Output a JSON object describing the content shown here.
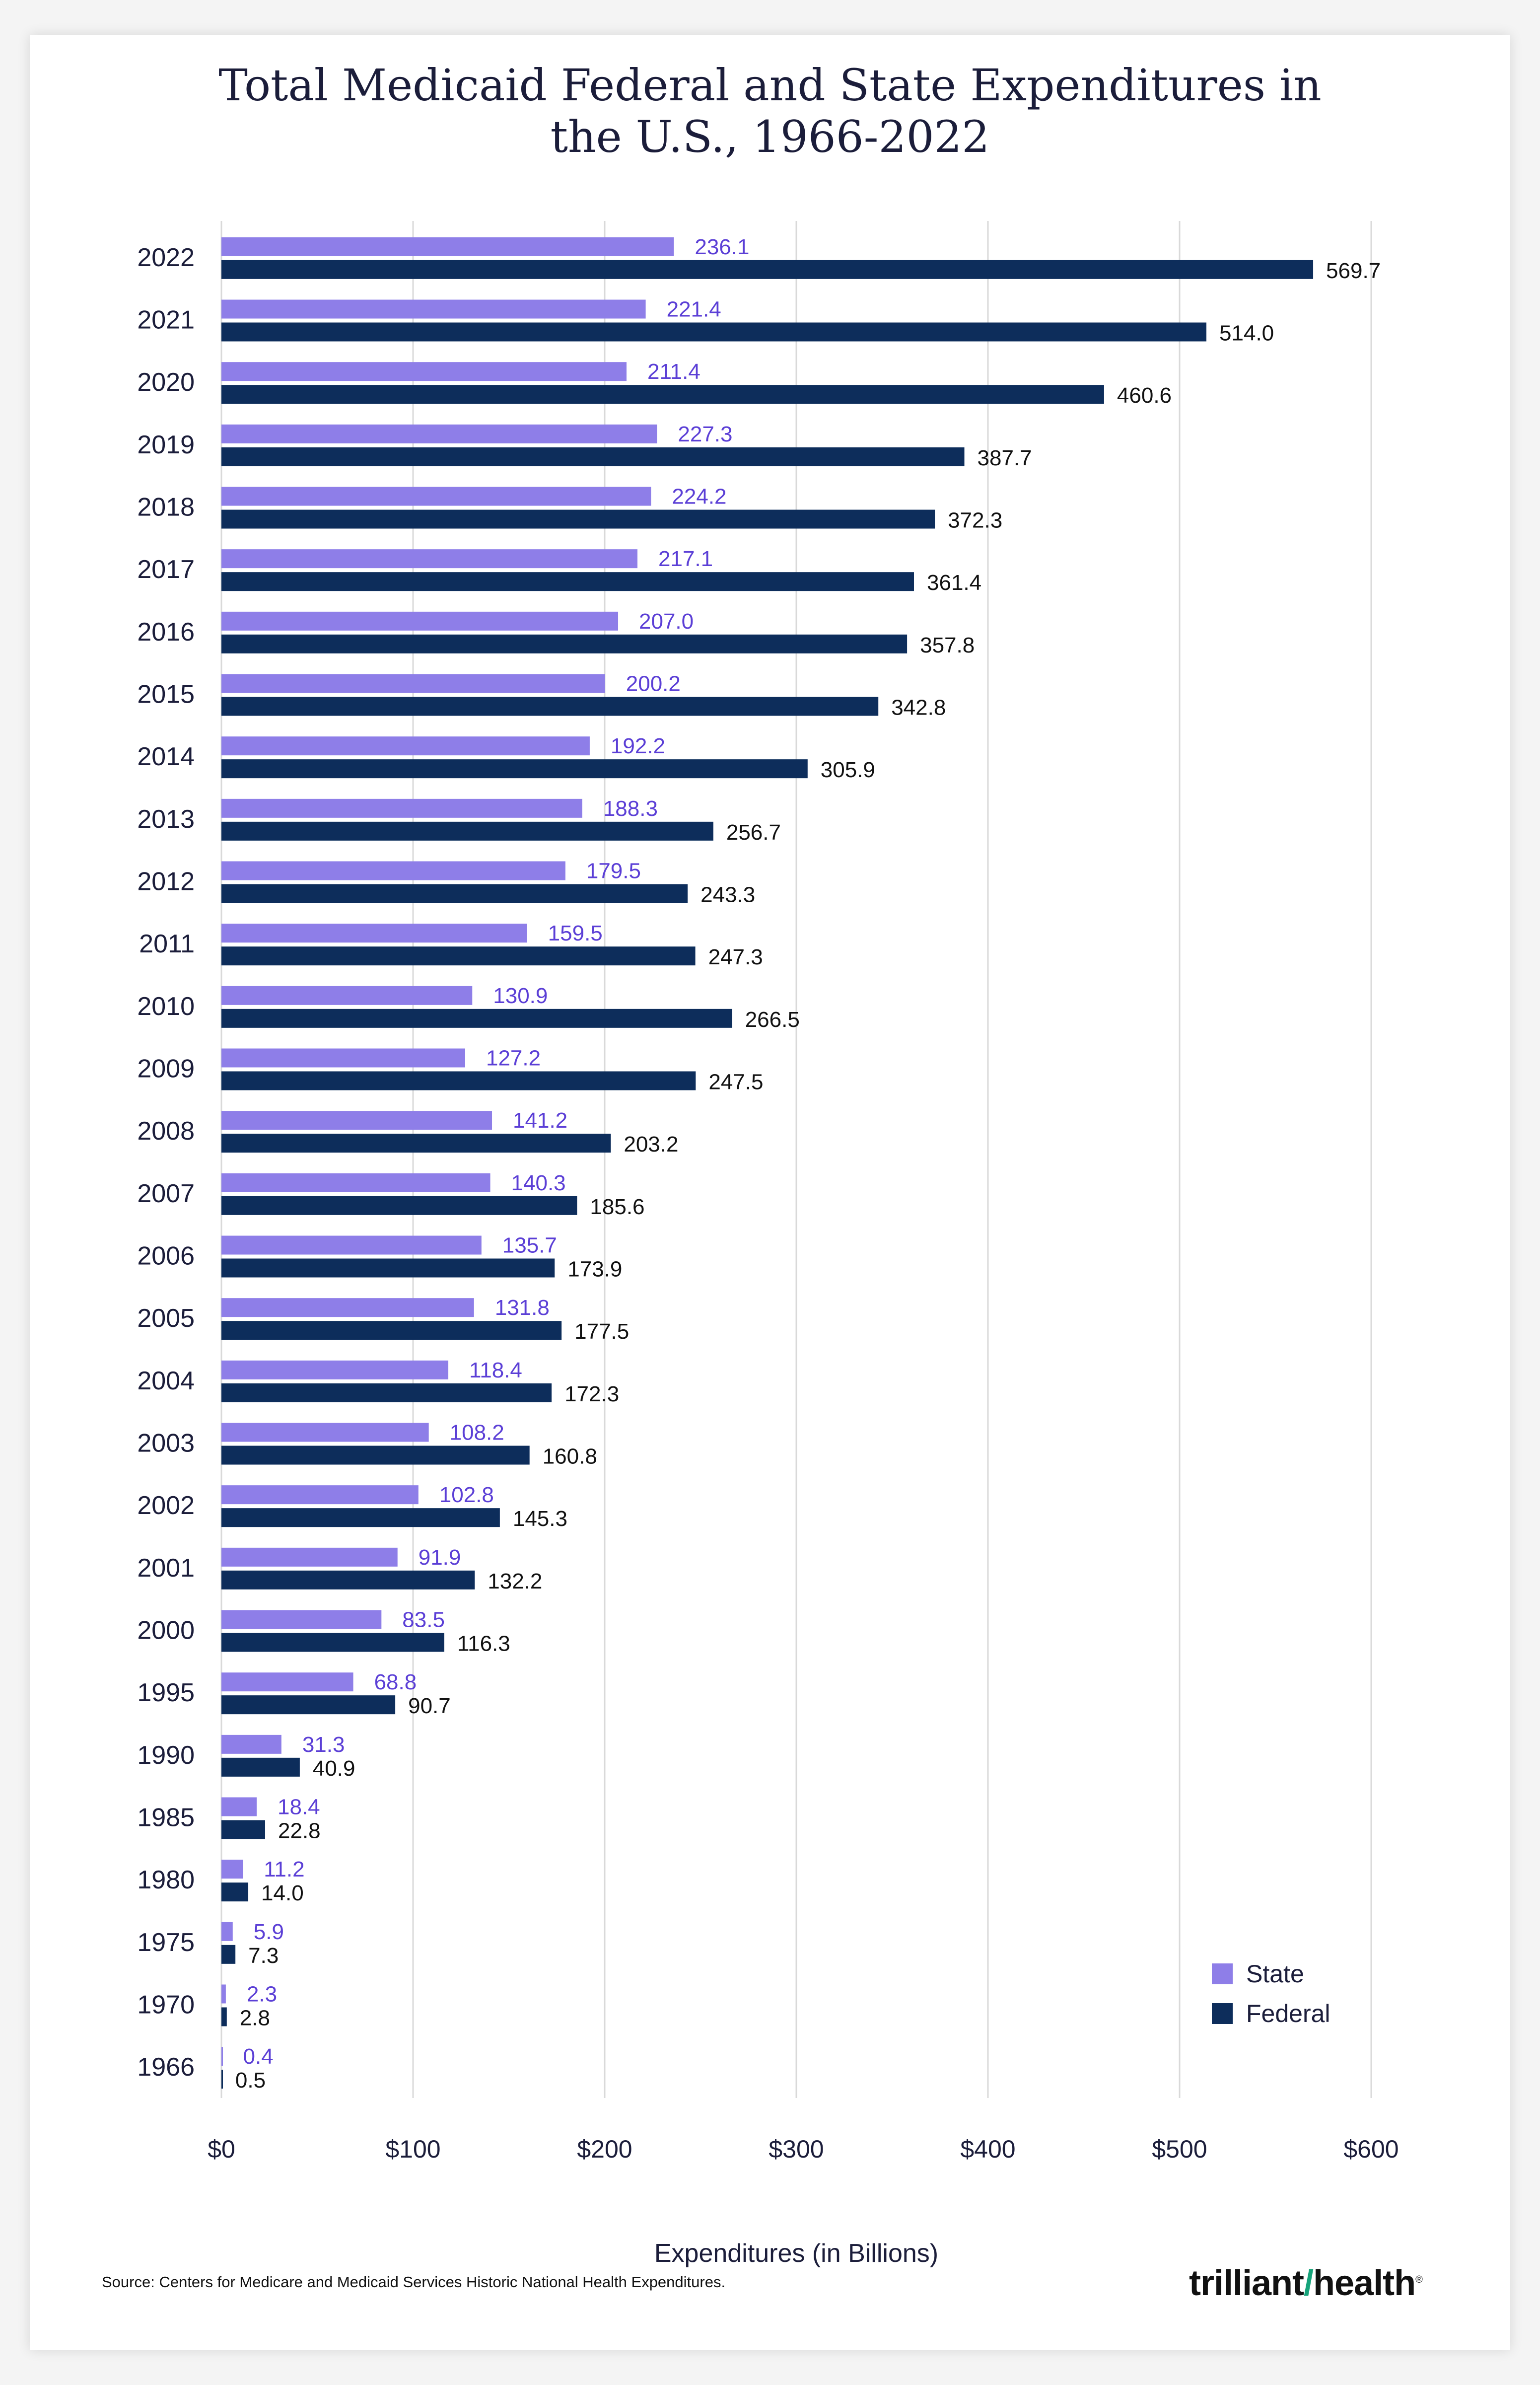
{
  "title": "Total Medicaid Federal and State Expenditures in\nthe U.S., 1966-2022",
  "source": "Source: Centers for Medicare and Medicaid Services Historic National Health Expenditures.",
  "logo_text": "trilliant health",
  "colors": {
    "state": "#8e7ee8",
    "federal": "#0d2d5b",
    "state_label": "#5b3fd6",
    "federal_label": "#111111",
    "grid": "#d9d9d9"
  },
  "chart_data": {
    "type": "bar",
    "orientation": "horizontal",
    "categories": [
      "2022",
      "2021",
      "2020",
      "2019",
      "2018",
      "2017",
      "2016",
      "2015",
      "2014",
      "2013",
      "2012",
      "2011",
      "2010",
      "2009",
      "2008",
      "2007",
      "2006",
      "2005",
      "2004",
      "2003",
      "2002",
      "2001",
      "2000",
      "1995",
      "1990",
      "1985",
      "1980",
      "1975",
      "1970",
      "1966"
    ],
    "series": [
      {
        "name": "State",
        "values": [
          236.1,
          221.4,
          211.4,
          227.3,
          224.2,
          217.1,
          207.0,
          200.2,
          192.2,
          188.3,
          179.5,
          159.5,
          130.9,
          127.2,
          141.2,
          140.3,
          135.7,
          131.8,
          118.4,
          108.2,
          102.8,
          91.9,
          83.5,
          68.8,
          31.3,
          18.4,
          11.2,
          5.9,
          2.3,
          0.4
        ]
      },
      {
        "name": "Federal",
        "values": [
          569.7,
          514.0,
          460.6,
          387.7,
          372.3,
          361.4,
          357.8,
          342.8,
          305.9,
          256.7,
          243.3,
          247.3,
          266.5,
          247.5,
          203.2,
          185.6,
          173.9,
          177.5,
          172.3,
          160.8,
          145.3,
          132.2,
          116.3,
          90.7,
          40.9,
          22.8,
          14.0,
          7.3,
          2.8,
          0.5
        ]
      }
    ],
    "xlabel": "Expenditures (in Billions)",
    "ylabel": "",
    "xlim": [
      0,
      600
    ],
    "xticks": [
      0,
      100,
      200,
      300,
      400,
      500,
      600
    ],
    "xtick_labels": [
      "$0",
      "$100",
      "$200",
      "$300",
      "$400",
      "$500",
      "$600"
    ],
    "grid": "vertical",
    "legend": {
      "position": "bottom-right",
      "entries": [
        "State",
        "Federal"
      ]
    }
  }
}
